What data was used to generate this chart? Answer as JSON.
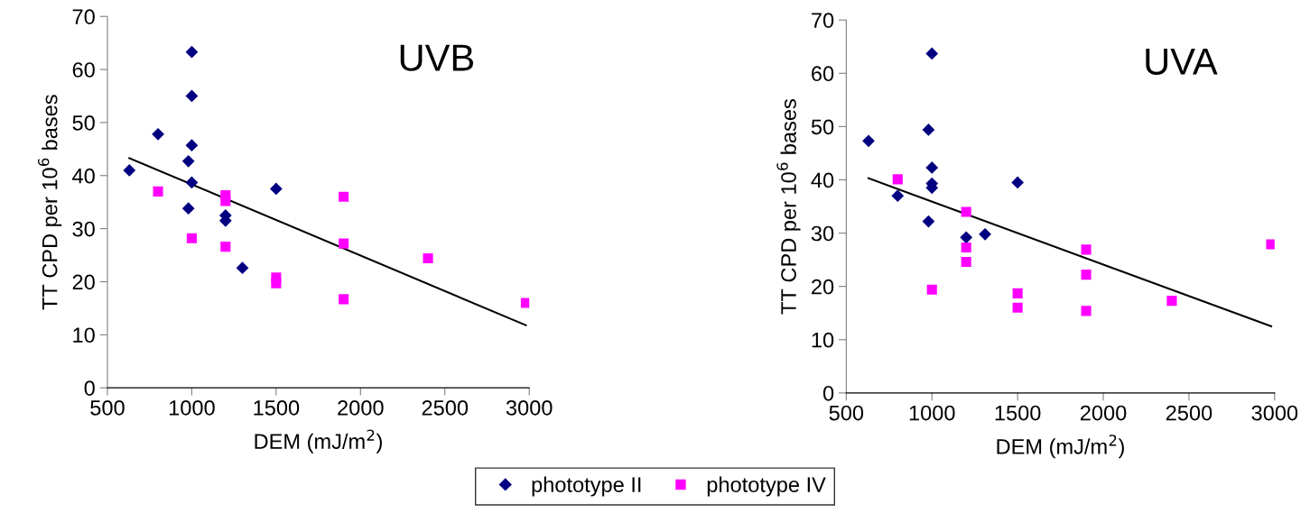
{
  "chart_data": [
    {
      "type": "scatter",
      "title": "UVB",
      "xlabel": "DEM (mJ/m$^{2}$)",
      "ylabel": "TT CPD per 10$^{6}$ bases",
      "xlim": [
        500,
        3000
      ],
      "xticks": [
        500,
        1000,
        1500,
        2000,
        2500,
        3000
      ],
      "ylim": [
        0,
        70
      ],
      "yticks": [
        0,
        10,
        20,
        30,
        40,
        50,
        60,
        70
      ],
      "grid": false,
      "legend": "bottom",
      "series": [
        {
          "name": "phototype II",
          "color": "#000080",
          "marker": "diamond",
          "x": [
            630,
            800,
            1000,
            1000,
            1000,
            980,
            1000,
            980,
            1200,
            1200,
            1300,
            1500
          ],
          "values": [
            41,
            47.8,
            63.3,
            55,
            45.7,
            42.7,
            38.7,
            33.8,
            32.5,
            31.5,
            22.6,
            37.5
          ]
        },
        {
          "name": "phototype IV",
          "color": "#ff00ff",
          "marker": "square",
          "x": [
            800,
            1000,
            1200,
            1200,
            1200,
            1500,
            1500,
            1900,
            1900,
            1900,
            2400,
            2980
          ],
          "values": [
            37,
            28.2,
            36.3,
            35.2,
            26.6,
            20.8,
            19.7,
            36,
            27.2,
            16.7,
            24.4,
            16
          ]
        },
        {
          "type": "line",
          "color": "#000000",
          "marker": "none",
          "x": [
            630,
            2980
          ],
          "values": [
            43.3,
            11.8
          ]
        }
      ]
    },
    {
      "type": "scatter",
      "title": "UVA",
      "xlabel": "DEM (mJ/m$^{2}$)",
      "ylabel": "TT CPD per 10$^{6}$ bases",
      "xlim": [
        500,
        3000
      ],
      "xticks": [
        500,
        1000,
        1500,
        2000,
        2500,
        3000
      ],
      "ylim": [
        0,
        70
      ],
      "yticks": [
        0,
        10,
        20,
        30,
        40,
        50,
        60,
        70
      ],
      "grid": false,
      "legend": "bottom",
      "series": [
        {
          "name": "phototype II",
          "color": "#000080",
          "marker": "diamond",
          "x": [
            630,
            800,
            1000,
            980,
            1000,
            1000,
            1000,
            980,
            1200,
            1310,
            1500
          ],
          "values": [
            47.3,
            37,
            63.7,
            49.4,
            42.3,
            39.3,
            38.5,
            32.2,
            29.2,
            29.8,
            39.5
          ]
        },
        {
          "name": "phototype IV",
          "color": "#ff00ff",
          "marker": "square",
          "x": [
            800,
            1200,
            1200,
            1200,
            1000,
            1500,
            1500,
            1900,
            1900,
            1900,
            2400,
            2980
          ],
          "values": [
            40.1,
            34,
            27.3,
            24.6,
            19.4,
            18.7,
            16,
            26.9,
            22.2,
            15.4,
            17.3,
            27.9
          ]
        },
        {
          "type": "line",
          "color": "#000000",
          "marker": "none",
          "x": [
            630,
            2980
          ],
          "values": [
            40.3,
            12.5
          ]
        }
      ]
    }
  ]
}
